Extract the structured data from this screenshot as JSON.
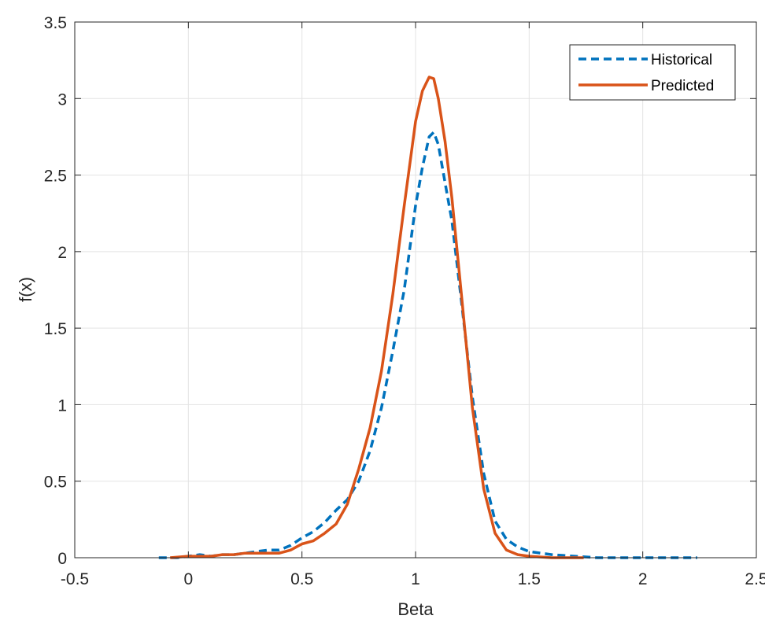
{
  "chart_data": {
    "type": "line",
    "title": "",
    "xlabel": "Beta",
    "ylabel": "f(x)",
    "xlim": [
      -0.5,
      2.5
    ],
    "ylim": [
      0,
      3.5
    ],
    "xticks": [
      -0.5,
      0,
      0.5,
      1,
      1.5,
      2,
      2.5
    ],
    "xtick_labels": [
      "-0.5",
      "0",
      "0.5",
      "1",
      "1.5",
      "2",
      "2.5"
    ],
    "yticks": [
      0,
      0.5,
      1,
      1.5,
      2,
      2.5,
      3,
      3.5
    ],
    "ytick_labels": [
      "0",
      "0.5",
      "1",
      "1.5",
      "2",
      "2.5",
      "3",
      "3.5"
    ],
    "grid": true,
    "legend_position": "top-right",
    "series": [
      {
        "name": "Historical",
        "color": "#0072BD",
        "style": "dashed",
        "x": [
          -0.13,
          -0.05,
          0.0,
          0.05,
          0.1,
          0.15,
          0.2,
          0.25,
          0.3,
          0.35,
          0.4,
          0.45,
          0.5,
          0.55,
          0.6,
          0.65,
          0.7,
          0.75,
          0.8,
          0.85,
          0.9,
          0.95,
          1.0,
          1.03,
          1.06,
          1.08,
          1.1,
          1.13,
          1.16,
          1.2,
          1.25,
          1.3,
          1.35,
          1.4,
          1.45,
          1.5,
          1.6,
          1.7,
          1.8,
          1.9,
          2.0,
          2.1,
          2.24
        ],
        "y": [
          0.0,
          0.0,
          0.01,
          0.02,
          0.01,
          0.02,
          0.02,
          0.03,
          0.04,
          0.05,
          0.05,
          0.08,
          0.13,
          0.17,
          0.23,
          0.31,
          0.38,
          0.5,
          0.7,
          0.98,
          1.35,
          1.75,
          2.3,
          2.55,
          2.75,
          2.78,
          2.7,
          2.45,
          2.2,
          1.7,
          1.05,
          0.55,
          0.24,
          0.12,
          0.07,
          0.04,
          0.02,
          0.01,
          0.0,
          0.0,
          0.0,
          0.0,
          0.0
        ]
      },
      {
        "name": "Predicted",
        "color": "#D95319",
        "style": "solid",
        "x": [
          -0.08,
          0.0,
          0.05,
          0.1,
          0.15,
          0.2,
          0.25,
          0.3,
          0.35,
          0.4,
          0.45,
          0.5,
          0.55,
          0.6,
          0.65,
          0.7,
          0.75,
          0.8,
          0.85,
          0.9,
          0.95,
          1.0,
          1.03,
          1.06,
          1.08,
          1.1,
          1.13,
          1.16,
          1.2,
          1.25,
          1.3,
          1.35,
          1.4,
          1.45,
          1.5,
          1.6,
          1.7,
          1.74
        ],
        "y": [
          0.0,
          0.01,
          0.01,
          0.01,
          0.02,
          0.02,
          0.03,
          0.03,
          0.03,
          0.03,
          0.05,
          0.09,
          0.11,
          0.16,
          0.22,
          0.35,
          0.58,
          0.85,
          1.22,
          1.72,
          2.3,
          2.85,
          3.05,
          3.14,
          3.13,
          3.0,
          2.72,
          2.35,
          1.75,
          0.98,
          0.45,
          0.16,
          0.05,
          0.02,
          0.01,
          0.0,
          0.0,
          0.0
        ]
      }
    ]
  }
}
